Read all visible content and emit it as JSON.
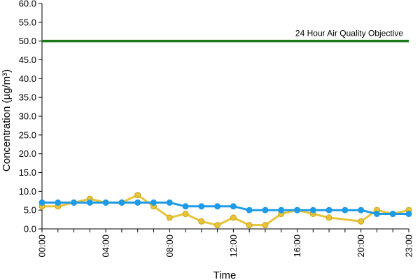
{
  "chart_data": {
    "type": "line",
    "title": "",
    "xlabel": "Time",
    "ylabel": "Concentration (µg/m³)",
    "ylim": [
      0,
      60
    ],
    "yticks": [
      "0.0",
      "5.0",
      "10.0",
      "15.0",
      "20.0",
      "25.0",
      "30.0",
      "35.0",
      "40.0",
      "45.0",
      "50.0",
      "55.0",
      "60.0"
    ],
    "x": [
      0,
      1,
      2,
      3,
      4,
      5,
      6,
      7,
      8,
      9,
      10,
      11,
      12,
      13,
      14,
      15,
      16,
      17,
      18,
      19,
      20,
      21,
      22,
      23
    ],
    "xticks": [
      {
        "x": 0,
        "label": "00:00"
      },
      {
        "x": 4,
        "label": "04:00"
      },
      {
        "x": 8,
        "label": "08:00"
      },
      {
        "x": 12,
        "label": "12:00"
      },
      {
        "x": 16,
        "label": "16:00"
      },
      {
        "x": 20,
        "label": "20:00"
      },
      {
        "x": 23,
        "label": "23:00"
      }
    ],
    "series": [
      {
        "color": "#e8c43a",
        "marker_stroke": "#c9a31a",
        "values": [
          6,
          6,
          7,
          8,
          7,
          7,
          9,
          6,
          3,
          4,
          2,
          1,
          3,
          1,
          1,
          4,
          5,
          4,
          3,
          null,
          2,
          5,
          4,
          5
        ]
      },
      {
        "color": "#1e9be8",
        "marker_stroke": "#1e9be8",
        "values": [
          7,
          7,
          7,
          7,
          7,
          7,
          7,
          7,
          7,
          6,
          6,
          6,
          6,
          5,
          5,
          5,
          5,
          5,
          5,
          5,
          5,
          4,
          4,
          4
        ]
      }
    ],
    "objective": {
      "value": 50,
      "label": "24 Hour Air Quality Objective",
      "color": "#1a7a1a"
    },
    "grid": false,
    "legend": "none"
  }
}
